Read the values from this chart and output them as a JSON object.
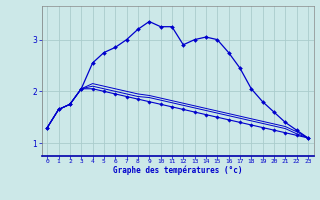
{
  "xlabel": "Graphe des températures (°c)",
  "background_color": "#cce8e8",
  "grid_color": "#aacccc",
  "line_color": "#0000cc",
  "x_ticks": [
    0,
    1,
    2,
    3,
    4,
    5,
    6,
    7,
    8,
    9,
    10,
    11,
    12,
    13,
    14,
    15,
    16,
    17,
    18,
    19,
    20,
    21,
    22,
    23
  ],
  "y_ticks": [
    1,
    2,
    3
  ],
  "xlim": [
    -0.5,
    23.5
  ],
  "ylim": [
    0.75,
    3.65
  ],
  "line1_x": [
    0,
    1,
    2,
    3,
    4,
    5,
    6,
    7,
    8,
    9,
    10,
    11,
    12,
    13,
    14,
    15,
    16,
    17,
    18,
    19,
    20,
    21,
    22,
    23
  ],
  "line1_y": [
    1.3,
    1.65,
    1.75,
    2.05,
    2.55,
    2.75,
    2.85,
    3.0,
    3.2,
    3.35,
    3.25,
    3.25,
    2.9,
    3.0,
    3.05,
    3.0,
    2.75,
    2.45,
    2.05,
    1.8,
    1.6,
    1.4,
    1.25,
    1.1
  ],
  "line2_x": [
    0,
    1,
    2,
    3,
    4,
    5,
    6,
    7,
    8,
    9,
    10,
    11,
    12,
    13,
    14,
    15,
    16,
    17,
    18,
    19,
    20,
    21,
    22,
    23
  ],
  "line2_y": [
    1.3,
    1.65,
    1.75,
    2.05,
    2.05,
    2.0,
    1.95,
    1.9,
    1.85,
    1.8,
    1.75,
    1.7,
    1.65,
    1.6,
    1.55,
    1.5,
    1.45,
    1.4,
    1.35,
    1.3,
    1.25,
    1.2,
    1.15,
    1.1
  ],
  "line3_x": [
    0,
    1,
    2,
    3,
    4,
    5,
    6,
    7,
    8,
    9,
    10,
    11,
    12,
    13,
    14,
    15,
    16,
    17,
    18,
    19,
    20,
    21,
    22,
    23
  ],
  "line3_y": [
    1.3,
    1.65,
    1.75,
    2.05,
    2.1,
    2.05,
    2.0,
    1.95,
    1.9,
    1.88,
    1.83,
    1.78,
    1.73,
    1.68,
    1.63,
    1.58,
    1.53,
    1.48,
    1.43,
    1.38,
    1.33,
    1.28,
    1.18,
    1.1
  ],
  "line4_x": [
    0,
    1,
    2,
    3,
    4,
    5,
    6,
    7,
    8,
    9,
    10,
    11,
    12,
    13,
    14,
    15,
    16,
    17,
    18,
    19,
    20,
    21,
    22,
    23
  ],
  "line4_y": [
    1.3,
    1.65,
    1.75,
    2.05,
    2.15,
    2.1,
    2.05,
    2.0,
    1.95,
    1.92,
    1.87,
    1.82,
    1.77,
    1.72,
    1.67,
    1.62,
    1.57,
    1.52,
    1.47,
    1.42,
    1.37,
    1.32,
    1.22,
    1.1
  ]
}
